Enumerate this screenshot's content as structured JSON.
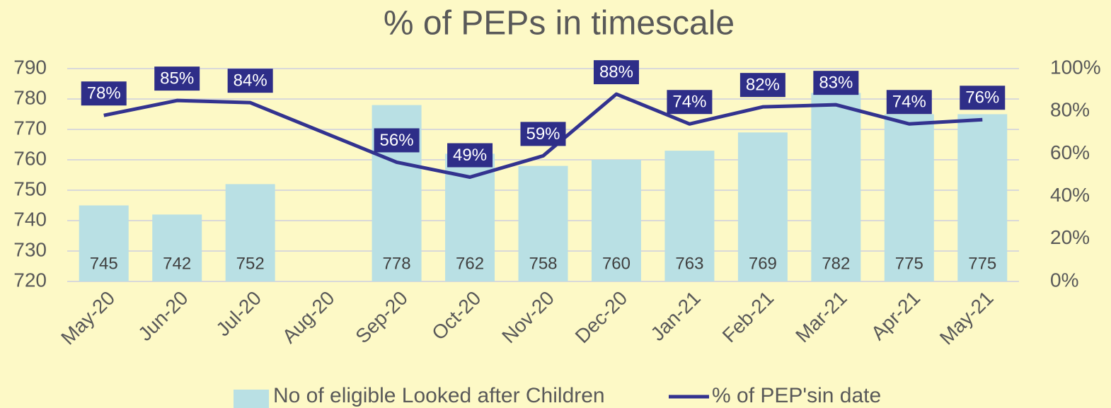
{
  "chart_data": {
    "type": "bar_line",
    "title": "% of PEPs in timescale",
    "categories": [
      "May-20",
      "Jun-20",
      "Jul-20",
      "Aug-20",
      "Sep-20",
      "Oct-20",
      "Nov-20",
      "Dec-20",
      "Jan-21",
      "Feb-21",
      "Mar-21",
      "Apr-21",
      "May-21"
    ],
    "series": [
      {
        "name": "No of eligible Looked after Children",
        "type": "bar",
        "color": "#b9e0e4",
        "values": [
          745,
          742,
          752,
          null,
          778,
          762,
          758,
          760,
          763,
          769,
          782,
          775,
          775
        ]
      },
      {
        "name": "% of PEP'sin date",
        "type": "line",
        "axis": "y2",
        "color": "#33338f",
        "values": [
          78,
          85,
          84,
          70,
          56,
          49,
          59,
          88,
          74,
          82,
          83,
          74,
          76
        ],
        "value_labels": [
          "78%",
          "85%",
          "84%",
          null,
          "56%",
          "49%",
          "59%",
          "88%",
          "74%",
          "82%",
          "83%",
          "74%",
          "76%"
        ]
      }
    ],
    "ylim": [
      720,
      790
    ],
    "yticks": [
      720,
      730,
      740,
      750,
      760,
      770,
      780,
      790
    ],
    "y2lim": [
      0,
      100
    ],
    "y2ticks": [
      {
        "value": 0,
        "label": "0%"
      },
      {
        "value": 20,
        "label": "20%"
      },
      {
        "value": 40,
        "label": "40%"
      },
      {
        "value": 60,
        "label": "60%"
      },
      {
        "value": 80,
        "label": "80%"
      },
      {
        "value": 100,
        "label": "100%"
      }
    ],
    "grid": true,
    "legend": "bottom"
  }
}
